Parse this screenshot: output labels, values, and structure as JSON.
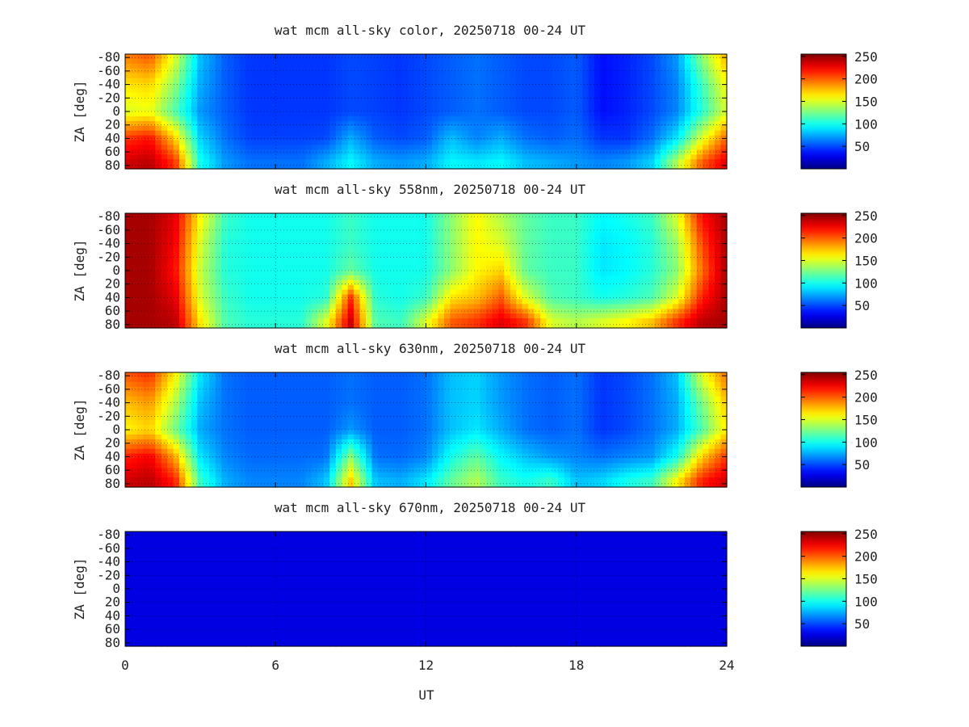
{
  "chart_data": {
    "type": "heatmap",
    "xlabel": "UT",
    "x_ticks": [
      "0",
      "6",
      "12",
      "18",
      "24"
    ],
    "xlim": [
      0,
      24
    ],
    "shared_x": true,
    "grid": true,
    "colormap": "jet",
    "colors": {
      "background": "#ffffff",
      "axis": "#000000",
      "grid": "#000000",
      "low": "#00008f",
      "high": "#800000"
    },
    "panels": [
      {
        "title": "wat mcm all-sky color, 20250718 00-24 UT",
        "ylabel": "ZA [deg]",
        "y_ticks": [
          "-80",
          "-60",
          "-40",
          "-20",
          "0",
          "20",
          "40",
          "60",
          "80"
        ],
        "ylim": [
          -85,
          85
        ],
        "colorbar": {
          "ticks": [
            "50",
            "100",
            "150",
            "200",
            "250"
          ],
          "range": [
            0,
            255
          ]
        },
        "x": [
          0,
          1,
          2,
          3,
          4,
          5,
          6,
          7,
          8,
          9,
          10,
          11,
          12,
          13,
          14,
          15,
          16,
          17,
          18,
          19,
          20,
          21,
          22,
          23,
          24
        ],
        "za_rows": [
          -80,
          -40,
          0,
          40,
          75
        ],
        "z": [
          [
            190,
            200,
            150,
            80,
            55,
            45,
            45,
            45,
            45,
            50,
            48,
            45,
            50,
            55,
            60,
            55,
            50,
            50,
            55,
            35,
            40,
            50,
            70,
            130,
            180
          ],
          [
            165,
            170,
            130,
            75,
            55,
            45,
            45,
            45,
            45,
            50,
            48,
            45,
            50,
            55,
            60,
            55,
            50,
            50,
            55,
            35,
            40,
            50,
            65,
            110,
            160
          ],
          [
            150,
            155,
            115,
            70,
            55,
            45,
            45,
            45,
            45,
            50,
            48,
            45,
            50,
            55,
            60,
            55,
            50,
            50,
            55,
            35,
            40,
            50,
            65,
            105,
            150
          ],
          [
            210,
            220,
            170,
            85,
            60,
            48,
            48,
            48,
            50,
            75,
            55,
            50,
            55,
            80,
            65,
            75,
            60,
            55,
            60,
            45,
            45,
            60,
            90,
            150,
            200
          ],
          [
            235,
            240,
            210,
            100,
            70,
            60,
            60,
            60,
            75,
            95,
            75,
            70,
            75,
            95,
            90,
            95,
            80,
            75,
            70,
            65,
            70,
            85,
            140,
            200,
            230
          ]
        ]
      },
      {
        "title": "wat mcm all-sky 558nm, 20250718 00-24 UT",
        "ylabel": "ZA [deg]",
        "y_ticks": [
          "-80",
          "-60",
          "-40",
          "-20",
          "0",
          "20",
          "40",
          "60",
          "80"
        ],
        "ylim": [
          -85,
          85
        ],
        "colorbar": {
          "ticks": [
            "50",
            "100",
            "150",
            "200",
            "250"
          ],
          "range": [
            0,
            255
          ]
        },
        "x": [
          0,
          1,
          2,
          3,
          4,
          5,
          6,
          7,
          8,
          9,
          10,
          11,
          12,
          13,
          14,
          15,
          16,
          17,
          18,
          19,
          20,
          21,
          22,
          23,
          24
        ],
        "za_rows": [
          -80,
          -40,
          0,
          40,
          75
        ],
        "z": [
          [
            245,
            245,
            230,
            160,
            110,
            100,
            100,
            100,
            100,
            110,
            100,
            100,
            100,
            130,
            160,
            140,
            120,
            110,
            110,
            95,
            100,
            110,
            150,
            220,
            245
          ],
          [
            245,
            245,
            225,
            150,
            105,
            100,
            100,
            100,
            100,
            110,
            100,
            100,
            100,
            130,
            160,
            150,
            120,
            110,
            110,
            90,
            95,
            105,
            135,
            205,
            245
          ],
          [
            245,
            245,
            220,
            145,
            105,
            100,
            100,
            100,
            100,
            120,
            100,
            100,
            100,
            130,
            160,
            170,
            120,
            110,
            110,
            90,
            95,
            105,
            130,
            195,
            245
          ],
          [
            245,
            245,
            230,
            150,
            110,
            100,
            100,
            100,
            105,
            210,
            105,
            100,
            110,
            165,
            175,
            200,
            150,
            115,
            110,
            100,
            105,
            115,
            150,
            215,
            245
          ],
          [
            245,
            245,
            240,
            165,
            115,
            105,
            105,
            105,
            150,
            235,
            115,
            110,
            150,
            200,
            210,
            230,
            210,
            150,
            140,
            150,
            160,
            175,
            210,
            240,
            245
          ]
        ]
      },
      {
        "title": "wat mcm all-sky 630nm, 20250718 00-24 UT",
        "ylabel": "ZA [deg]",
        "y_ticks": [
          "-80",
          "-60",
          "-40",
          "-20",
          "0",
          "20",
          "40",
          "60",
          "80"
        ],
        "ylim": [
          -85,
          85
        ],
        "colorbar": {
          "ticks": [
            "50",
            "100",
            "150",
            "200",
            "250"
          ],
          "range": [
            0,
            255
          ]
        },
        "x": [
          0,
          1,
          2,
          3,
          4,
          5,
          6,
          7,
          8,
          9,
          10,
          11,
          12,
          13,
          14,
          15,
          16,
          17,
          18,
          19,
          20,
          21,
          22,
          23,
          24
        ],
        "za_rows": [
          -80,
          -40,
          0,
          40,
          75
        ],
        "z": [
          [
            200,
            210,
            160,
            90,
            60,
            55,
            55,
            55,
            55,
            60,
            55,
            55,
            60,
            80,
            85,
            70,
            60,
            55,
            60,
            45,
            50,
            60,
            80,
            150,
            195
          ],
          [
            175,
            185,
            140,
            80,
            60,
            55,
            55,
            55,
            55,
            60,
            55,
            55,
            60,
            80,
            85,
            70,
            60,
            55,
            60,
            45,
            50,
            60,
            75,
            125,
            175
          ],
          [
            160,
            170,
            125,
            75,
            60,
            55,
            55,
            55,
            55,
            70,
            55,
            55,
            60,
            80,
            90,
            75,
            60,
            55,
            60,
            45,
            50,
            60,
            75,
            115,
            165
          ],
          [
            215,
            225,
            180,
            90,
            65,
            58,
            58,
            58,
            60,
            130,
            60,
            58,
            65,
            100,
            120,
            95,
            80,
            70,
            65,
            60,
            65,
            70,
            100,
            170,
            210
          ],
          [
            235,
            240,
            215,
            110,
            75,
            65,
            65,
            65,
            80,
            170,
            80,
            75,
            90,
            120,
            140,
            110,
            100,
            110,
            80,
            85,
            100,
            110,
            160,
            215,
            235
          ]
        ]
      },
      {
        "title": "wat mcm all-sky 670nm, 20250718 00-24 UT",
        "ylabel": "ZA [deg]",
        "y_ticks": [
          "-80",
          "-60",
          "-40",
          "-20",
          "0",
          "20",
          "40",
          "60",
          "80"
        ],
        "ylim": [
          -85,
          85
        ],
        "colorbar": {
          "ticks": [
            "50",
            "100",
            "150",
            "200",
            "250"
          ],
          "range": [
            0,
            255
          ]
        },
        "x": [
          0,
          1,
          2,
          3,
          4,
          5,
          6,
          7,
          8,
          9,
          10,
          11,
          12,
          13,
          14,
          15,
          16,
          17,
          18,
          19,
          20,
          21,
          22,
          23,
          24
        ],
        "za_rows": [
          -80,
          -40,
          0,
          40,
          75
        ],
        "z": [
          [
            25,
            25,
            25,
            25,
            25,
            25,
            25,
            25,
            25,
            25,
            25,
            25,
            25,
            25,
            25,
            25,
            25,
            25,
            25,
            25,
            25,
            25,
            25,
            25,
            25
          ],
          [
            25,
            25,
            25,
            25,
            25,
            25,
            25,
            25,
            25,
            25,
            25,
            25,
            25,
            25,
            25,
            25,
            25,
            25,
            25,
            25,
            25,
            25,
            25,
            25,
            25
          ],
          [
            25,
            25,
            25,
            25,
            25,
            25,
            25,
            25,
            25,
            25,
            25,
            25,
            25,
            25,
            25,
            25,
            25,
            25,
            25,
            25,
            25,
            25,
            25,
            25,
            25
          ],
          [
            25,
            25,
            25,
            25,
            25,
            25,
            25,
            25,
            25,
            25,
            25,
            25,
            25,
            25,
            25,
            25,
            25,
            25,
            25,
            25,
            25,
            25,
            25,
            25,
            25
          ],
          [
            25,
            25,
            25,
            25,
            25,
            25,
            25,
            25,
            25,
            25,
            25,
            25,
            25,
            25,
            25,
            25,
            25,
            25,
            25,
            25,
            25,
            25,
            25,
            25,
            25
          ]
        ]
      }
    ]
  }
}
